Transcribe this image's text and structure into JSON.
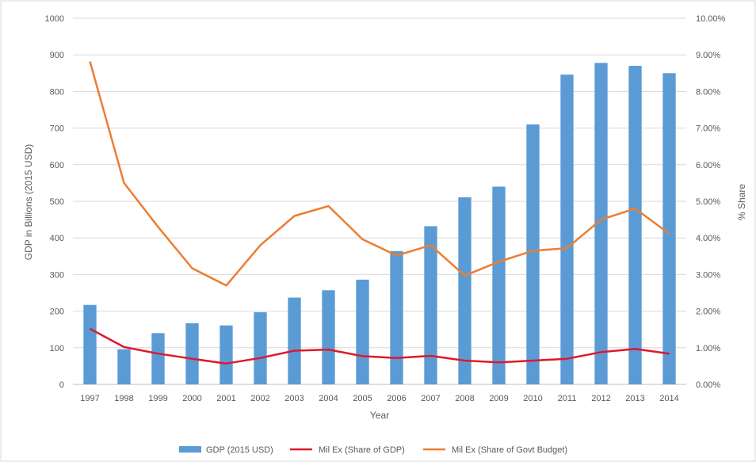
{
  "chart_data": {
    "type": "bar",
    "categories": [
      "1997",
      "1998",
      "1999",
      "2000",
      "2001",
      "2002",
      "2003",
      "2004",
      "2005",
      "2006",
      "2007",
      "2008",
      "2009",
      "2010",
      "2011",
      "2012",
      "2013",
      "2014"
    ],
    "xlabel": "Year",
    "ylabel": "GDP in Billions (2015 USD)",
    "ylabel_right": "% Share",
    "ylim": [
      0,
      1000
    ],
    "ylim_right": [
      0,
      10
    ],
    "yticks": [
      "0",
      "100",
      "200",
      "300",
      "400",
      "500",
      "600",
      "700",
      "800",
      "900",
      "1000"
    ],
    "yticks_right": [
      "0.00%",
      "1.00%",
      "2.00%",
      "3.00%",
      "4.00%",
      "5.00%",
      "6.00%",
      "7.00%",
      "8.00%",
      "9.00%",
      "10.00%"
    ],
    "grid": true,
    "legend_position": "bottom",
    "series": [
      {
        "name": "GDP (2015 USD)",
        "type": "bar",
        "axis": "left",
        "color": "#5B9BD5",
        "values": [
          217,
          96,
          140,
          167,
          161,
          197,
          237,
          257,
          286,
          364,
          432,
          511,
          540,
          710,
          846,
          878,
          870,
          850
        ]
      },
      {
        "name": "Mil Ex (Share of GDP)",
        "type": "line",
        "axis": "right",
        "color": "#E0182A",
        "values": [
          1.52,
          1.02,
          0.84,
          0.7,
          0.57,
          0.72,
          0.92,
          0.95,
          0.77,
          0.72,
          0.78,
          0.65,
          0.6,
          0.65,
          0.7,
          0.88,
          0.97,
          0.84
        ]
      },
      {
        "name": "Mil Ex (Share of Govt Budget)",
        "type": "line",
        "axis": "right",
        "color": "#ED7D31",
        "values": [
          8.82,
          5.5,
          4.3,
          3.17,
          2.7,
          3.8,
          4.6,
          4.87,
          3.96,
          3.52,
          3.8,
          2.97,
          3.35,
          3.65,
          3.72,
          4.5,
          4.8,
          4.12
        ]
      }
    ]
  }
}
